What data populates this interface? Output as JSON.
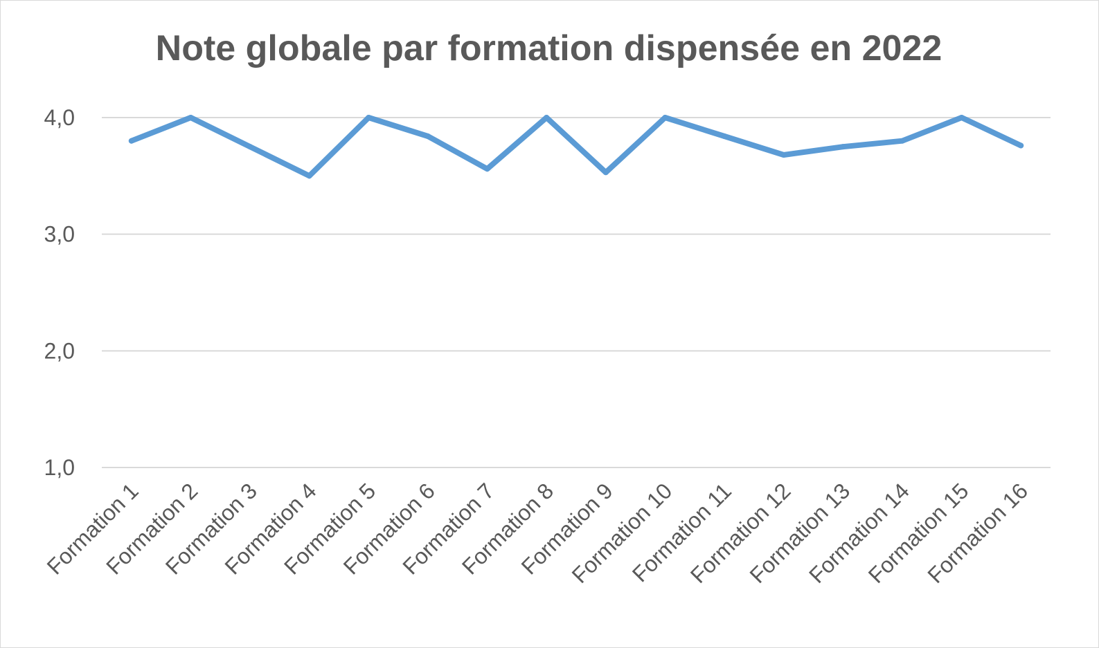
{
  "chart_data": {
    "type": "line",
    "title": "Note globale par formation dispensée en 2022",
    "xlabel": "",
    "ylabel": "",
    "ylim": [
      1.0,
      4.0
    ],
    "yticks": [
      "1,0",
      "2,0",
      "3,0",
      "4,0"
    ],
    "ytick_values": [
      1.0,
      2.0,
      3.0,
      4.0
    ],
    "grid": true,
    "legend": "none",
    "categories": [
      "Formation 1",
      "Formation 2",
      "Formation 3",
      "Formation 4",
      "Formation 5",
      "Formation 6",
      "Formation 7",
      "Formation 8",
      "Formation 9",
      "Formation 10",
      "Formation 11",
      "Formation 12",
      "Formation 13",
      "Formation 14",
      "Formation 15",
      "Formation 16"
    ],
    "series": [
      {
        "values": [
          3.8,
          4.0,
          3.75,
          3.5,
          4.0,
          3.84,
          3.56,
          4.0,
          3.53,
          4.0,
          3.84,
          3.68,
          3.75,
          3.8,
          4.0,
          3.76
        ],
        "color": "#5b9bd5"
      }
    ],
    "colors": {
      "line": "#5b9bd5",
      "grid": "#d9d9d9",
      "text": "#595959"
    }
  }
}
